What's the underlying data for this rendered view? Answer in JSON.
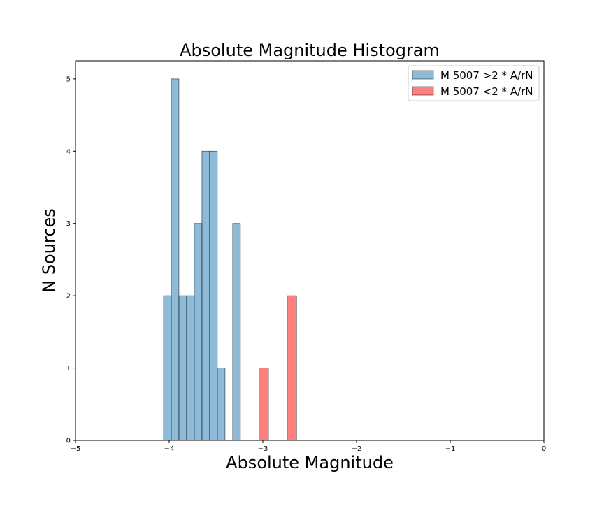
{
  "chart_data": {
    "type": "bar",
    "title": "Absolute Magnitude Histogram",
    "xlabel": "Absolute Magnitude",
    "ylabel": "N Sources",
    "xlim": [
      -5,
      0
    ],
    "ylim": [
      0,
      5.25
    ],
    "xticks": [
      -5,
      -4,
      -3,
      -2,
      -1,
      0
    ],
    "xtick_labels": [
      "−5",
      "−4",
      "−3",
      "−2",
      "−1",
      "0"
    ],
    "yticks": [
      0,
      1,
      2,
      3,
      4,
      5
    ],
    "ytick_labels": [
      "0",
      "1",
      "2",
      "3",
      "4",
      "5"
    ],
    "grid": false,
    "legend_position": "upper-right",
    "bin_width": 0.082,
    "series": [
      {
        "name": "M 5007 >2 * A/rN",
        "color": "#1f77b4",
        "alpha": 0.5,
        "bins": [
          {
            "x0": -4.06,
            "x1": -3.978,
            "count": 2
          },
          {
            "x0": -3.978,
            "x1": -3.896,
            "count": 5
          },
          {
            "x0": -3.896,
            "x1": -3.814,
            "count": 2
          },
          {
            "x0": -3.814,
            "x1": -3.732,
            "count": 2
          },
          {
            "x0": -3.732,
            "x1": -3.65,
            "count": 3
          },
          {
            "x0": -3.65,
            "x1": -3.568,
            "count": 4
          },
          {
            "x0": -3.568,
            "x1": -3.486,
            "count": 4
          },
          {
            "x0": -3.486,
            "x1": -3.404,
            "count": 1
          },
          {
            "x0": -3.322,
            "x1": -3.24,
            "count": 3
          }
        ]
      },
      {
        "name": "M 5007 <2 * A/rN",
        "color": "#ff0000",
        "alpha": 0.5,
        "bins": [
          {
            "x0": -3.04,
            "x1": -2.94,
            "count": 1
          },
          {
            "x0": -2.74,
            "x1": -2.64,
            "count": 2
          }
        ]
      }
    ]
  }
}
